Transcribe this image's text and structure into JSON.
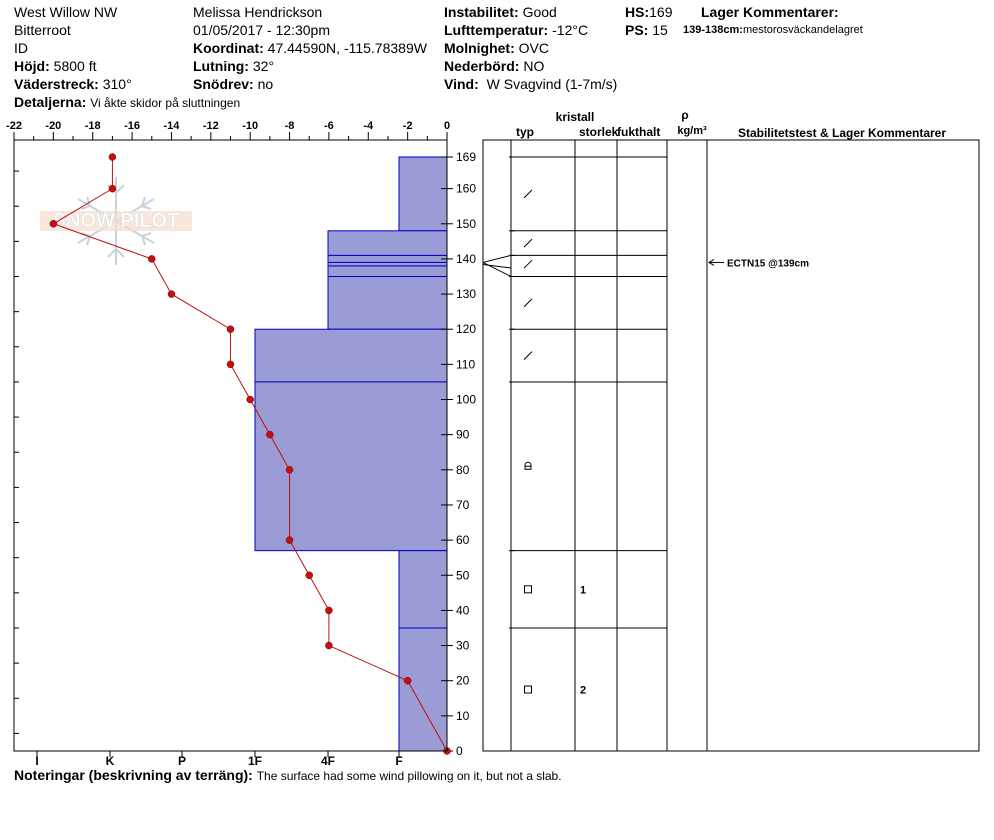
{
  "header": {
    "location": "West Willow NW",
    "region": "Bitterroot",
    "id_label": "ID",
    "elevation_label": "Höjd:",
    "elevation_value": "5800 ft",
    "aspect_label": "Väderstreck:",
    "aspect_value": "310°",
    "details_label": "Detaljerna:",
    "details_value": "Vi åkte skidor på sluttningen",
    "observer": "Melissa Hendrickson",
    "datetime": "01/05/2017 - 12:30pm",
    "coord_label": "Koordinat:",
    "coord_value": "47.44590N, -115.78389W",
    "slope_label": "Lutning:",
    "slope_value": "32°",
    "snowdrift_label": "Snödrev:",
    "snowdrift_value": "no",
    "stability_label": "Instabilitet:",
    "stability_value": "Good",
    "airtemp_label": "Lufttemperatur:",
    "airtemp_value": "-12°C",
    "cloud_label": "Molnighet:",
    "cloud_value": "OVC",
    "precip_label": "Nederbörd:",
    "precip_value": "NO",
    "wind_label": "Vind:",
    "wind_value": "W Svagvind (1-7m/s)",
    "hs_label": "HS:",
    "hs_value": "169",
    "ps_label": "PS:",
    "ps_value": "15",
    "layer_comments_label": "Lager Kommentarer:",
    "layer_comment_depth": "139-138cm:",
    "layer_comment_text": "mestorosväckandelagret"
  },
  "watermark": "SNOW PILOT",
  "columns": {
    "crystal": "kristall",
    "type": "typ",
    "size": "storlek",
    "moisture": "fukthalt",
    "rho": "ρ",
    "density_unit": "kg/m³",
    "stability": "Stabilitetstest & Lager Kommentarer"
  },
  "notes": {
    "label": "Noteringar (beskrivning av terräng):",
    "text": "The surface had some wind pillowing on it, but not a slab."
  },
  "colors": {
    "hardness_fill": "#9b9bd6",
    "hardness_line": "#0000c0",
    "temp_line": "#c01010"
  },
  "chart_data": {
    "type": "snow_profile",
    "temp_axis": {
      "ticks": [
        -22,
        -20,
        -18,
        -16,
        -14,
        -12,
        -10,
        -8,
        -6,
        -4,
        -2,
        0
      ],
      "range": [
        -22,
        0
      ],
      "position": "top"
    },
    "depth_axis": {
      "ticks": [
        0,
        10,
        20,
        30,
        40,
        50,
        60,
        70,
        80,
        90,
        100,
        110,
        120,
        130,
        140,
        150,
        160,
        169
      ],
      "range": [
        0,
        169
      ]
    },
    "hardness_axis": {
      "ticks": [
        "I",
        "K",
        "P",
        "1F",
        "4F",
        "F"
      ]
    },
    "temperature_profile": [
      {
        "depth": 169,
        "temp": -17
      },
      {
        "depth": 160,
        "temp": -17
      },
      {
        "depth": 150,
        "temp": -20
      },
      {
        "depth": 140,
        "temp": -15
      },
      {
        "depth": 130,
        "temp": -14
      },
      {
        "depth": 120,
        "temp": -11
      },
      {
        "depth": 110,
        "temp": -11
      },
      {
        "depth": 100,
        "temp": -10
      },
      {
        "depth": 90,
        "temp": -9
      },
      {
        "depth": 80,
        "temp": -8
      },
      {
        "depth": 60,
        "temp": -8
      },
      {
        "depth": 50,
        "temp": -7
      },
      {
        "depth": 40,
        "temp": -6
      },
      {
        "depth": 30,
        "temp": -6
      },
      {
        "depth": 20,
        "temp": -2
      },
      {
        "depth": 0,
        "temp": 0
      }
    ],
    "layers": [
      {
        "top": 169,
        "bottom": 148,
        "hardness": "F",
        "grain": "/",
        "size": ""
      },
      {
        "top": 148,
        "bottom": 141,
        "hardness": "4F",
        "grain": "/",
        "size": ""
      },
      {
        "top": 141,
        "bottom": 139,
        "hardness": "4F",
        "grain": "",
        "size": ""
      },
      {
        "top": 139,
        "bottom": 138,
        "hardness": "4F",
        "grain": "/",
        "size": ""
      },
      {
        "top": 138,
        "bottom": 135,
        "hardness": "4F",
        "grain": "",
        "size": ""
      },
      {
        "top": 135,
        "bottom": 120,
        "hardness": "4F",
        "grain": "/",
        "size": ""
      },
      {
        "top": 120,
        "bottom": 105,
        "hardness": "1F",
        "grain": "/",
        "size": ""
      },
      {
        "top": 105,
        "bottom": 57,
        "hardness": "1F",
        "grain": "⌂",
        "size": ""
      },
      {
        "top": 57,
        "bottom": 35,
        "hardness": "F",
        "grain": "□",
        "size": "1"
      },
      {
        "top": 35,
        "bottom": 0,
        "hardness": "F",
        "grain": "□",
        "size": "2"
      }
    ],
    "stability_tests": [
      {
        "depth": 139,
        "label": "ECTN15 @139cm"
      }
    ]
  }
}
